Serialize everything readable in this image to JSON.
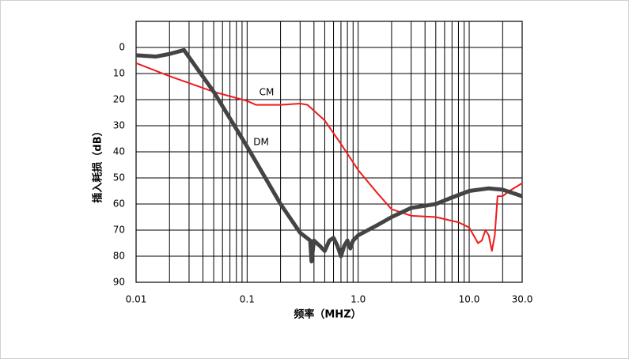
{
  "chart_data": {
    "type": "line",
    "x_label": "频率（MHZ）",
    "y_label": "插入耗损（dB）",
    "xlog": true,
    "yinverted": true,
    "grid": true,
    "xlim": [
      0.01,
      30
    ],
    "ylim": [
      -10,
      90
    ],
    "xticks": [
      0.01,
      0.1,
      {
        "value": 1,
        "label": "1.0"
      },
      {
        "value": 10,
        "label": "10.0"
      },
      {
        "value": 30,
        "label": "30.0"
      }
    ],
    "minor_xticks": [
      0.02,
      0.03,
      0.04,
      0.05,
      0.06,
      0.07,
      0.08,
      0.09,
      0.2,
      0.3,
      0.4,
      0.5,
      0.6,
      0.7,
      0.8,
      0.9,
      2,
      3,
      4,
      5,
      6,
      7,
      8,
      9,
      20
    ],
    "yticks": [
      0,
      10,
      20,
      30,
      40,
      50,
      60,
      70,
      80,
      90
    ],
    "annotations": [
      "CM",
      "DM"
    ],
    "series": [
      {
        "name": "CM",
        "color": "#ee1c1c",
        "width": 2,
        "x": [
          0.01,
          0.02,
          0.05,
          0.1,
          0.12,
          0.2,
          0.3,
          0.35,
          0.5,
          0.7,
          1,
          1.5,
          2,
          3,
          5,
          8,
          10,
          12,
          13,
          14,
          15,
          16,
          17,
          18,
          20,
          23,
          30
        ],
        "values": [
          6,
          11,
          17,
          20.5,
          22,
          22,
          21.5,
          22,
          28,
          37,
          47,
          56,
          62,
          64.5,
          65,
          67,
          69,
          75,
          74,
          70,
          72,
          78,
          72,
          57,
          57,
          55,
          52
        ]
      },
      {
        "name": "DM",
        "color": "#444444",
        "width": 5,
        "x": [
          0.01,
          0.015,
          0.02,
          0.027,
          0.05,
          0.1,
          0.2,
          0.3,
          0.37,
          0.38,
          0.4,
          0.45,
          0.5,
          0.55,
          0.6,
          0.65,
          0.7,
          0.75,
          0.8,
          0.85,
          0.9,
          1,
          1.5,
          2,
          3,
          5,
          7,
          10,
          15,
          20,
          30
        ],
        "values": [
          3,
          3.5,
          2.5,
          1,
          17,
          38,
          60,
          71,
          74,
          82,
          74,
          76,
          78,
          74,
          73,
          76,
          80,
          76,
          74,
          77,
          74,
          72,
          68,
          65,
          61.5,
          60,
          57.5,
          55,
          54,
          54.5,
          57
        ]
      }
    ]
  }
}
